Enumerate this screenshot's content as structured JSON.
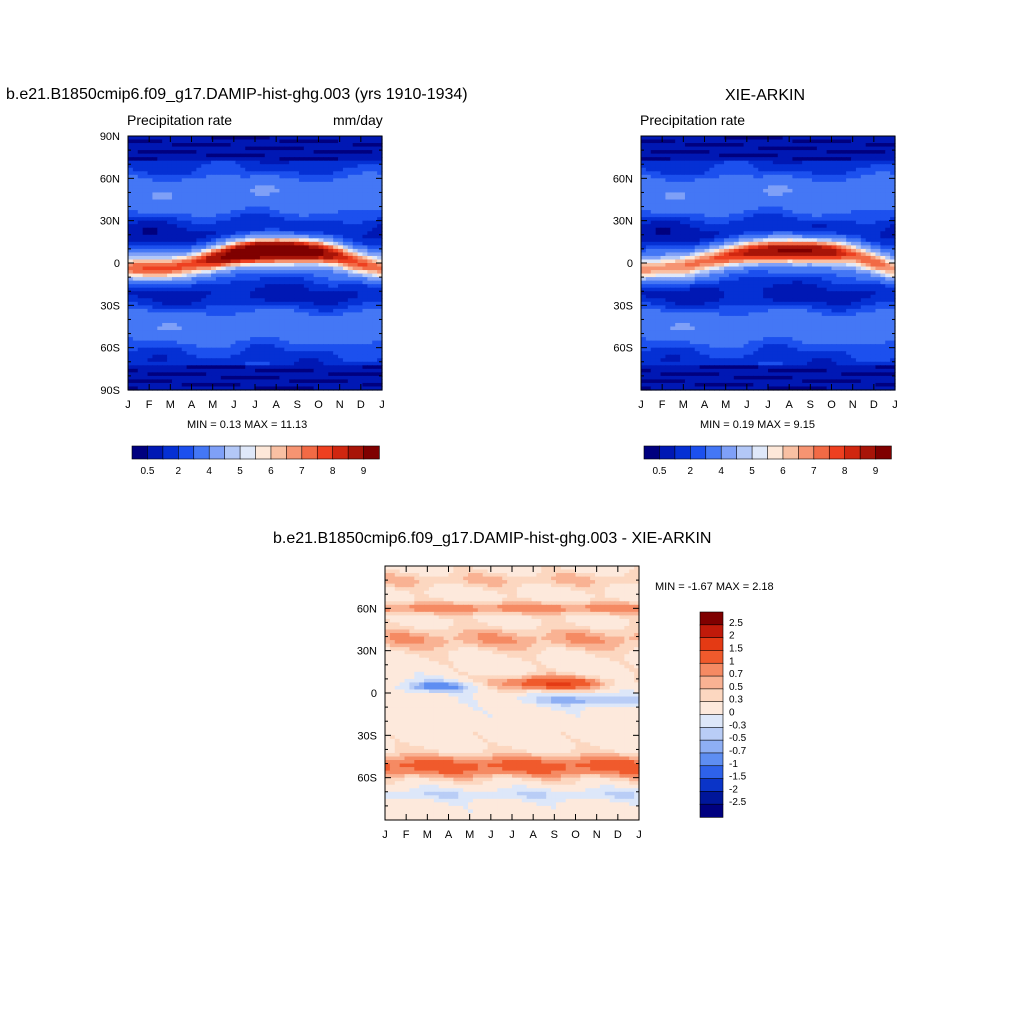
{
  "panels": [
    {
      "id": "model",
      "title": "b.e21.B1850cmip6.f09_g17.DAMIP-hist-ghg.003 (yrs 1910-1934)",
      "left_label": "Precipitation rate",
      "right_label": "mm/day",
      "minmax": "MIN =   0.13 MAX =   11.13"
    },
    {
      "id": "obs",
      "title": "XIE-ARKIN",
      "left_label": "Precipitation rate",
      "right_label": "",
      "minmax": "MIN =   0.19 MAX =   9.15"
    },
    {
      "id": "diff",
      "title": "b.e21.B1850cmip6.f09_g17.DAMIP-hist-ghg.003 - XIE-ARKIN",
      "left_label": "",
      "right_label": "",
      "minmax": "MIN =  -1.67 MAX =   2.18"
    }
  ],
  "x_ticks": [
    "J",
    "F",
    "M",
    "A",
    "M",
    "J",
    "J",
    "A",
    "S",
    "O",
    "N",
    "D",
    "J"
  ],
  "y_ticks_full": [
    "90N",
    "60N",
    "30N",
    "0",
    "30S",
    "60S",
    "90S"
  ],
  "y_ticks_inner": [
    "60N",
    "30N",
    "0",
    "30S",
    "60S"
  ],
  "precip_colorbar": {
    "labels": [
      "0.5",
      "2",
      "4",
      "5",
      "6",
      "7",
      "8",
      "9"
    ],
    "colors": [
      "#00007f",
      "#0018b4",
      "#0530d4",
      "#1c50ee",
      "#4477f5",
      "#7fa0f7",
      "#b3c8f7",
      "#dfe8f9",
      "#fde8d9",
      "#f9c0a3",
      "#f69472",
      "#f26a45",
      "#ee4020",
      "#d02710",
      "#a81408",
      "#7f0000"
    ]
  },
  "diff_colorbar": {
    "labels": [
      "2.5",
      "2",
      "1.5",
      "1",
      "0.7",
      "0.5",
      "0.3",
      "0",
      "-0.3",
      "-0.5",
      "-0.7",
      "-1",
      "-1.5",
      "-2",
      "-2.5"
    ],
    "colors": [
      "#7f0000",
      "#c01a0a",
      "#e43a14",
      "#f05a2c",
      "#f58a63",
      "#f9b293",
      "#fcd7c0",
      "#fde9dc",
      "#dde7f9",
      "#b9cdf6",
      "#8eaff4",
      "#5e8ef2",
      "#2e62ea",
      "#0a34c8",
      "#00169a",
      "#00007f"
    ]
  },
  "chart_data": [
    {
      "type": "heatmap",
      "title": "b.e21.B1850cmip6.f09_g17.DAMIP-hist-ghg.003 (yrs 1910-1934)",
      "variable": "Precipitation rate",
      "units": "mm/day",
      "x": [
        "J",
        "F",
        "M",
        "A",
        "M",
        "J",
        "J",
        "A",
        "S",
        "O",
        "N",
        "D",
        "J"
      ],
      "y": [
        "90N",
        "60N",
        "30N",
        "0",
        "30S",
        "60S",
        "90S"
      ],
      "min": 0.13,
      "max": 11.13,
      "itcz_peak_lat_by_month": [
        -4,
        -4,
        -3,
        0,
        3,
        6,
        8,
        9,
        9,
        8,
        5,
        0,
        -4
      ],
      "itcz_peak_value_by_month": [
        6.5,
        6.8,
        6.6,
        6.8,
        8.5,
        10,
        11,
        11,
        10.5,
        9.5,
        8.2,
        7,
        6.5
      ]
    },
    {
      "type": "heatmap",
      "title": "XIE-ARKIN",
      "variable": "Precipitation rate",
      "x": [
        "J",
        "F",
        "M",
        "A",
        "M",
        "J",
        "J",
        "A",
        "S",
        "O",
        "N",
        "D",
        "J"
      ],
      "y": [
        "60N",
        "30N",
        "0",
        "30S",
        "60S"
      ],
      "min": 0.19,
      "max": 9.15,
      "itcz_peak_lat_by_month": [
        -5,
        -4,
        -2,
        2,
        5,
        7,
        8,
        9,
        9,
        8,
        6,
        1,
        -5
      ],
      "itcz_peak_value_by_month": [
        6,
        6,
        6.2,
        6.6,
        7.4,
        8.2,
        8.8,
        9.1,
        9,
        8.5,
        7.5,
        6.8,
        6
      ]
    },
    {
      "type": "heatmap",
      "title": "b.e21.B1850cmip6.f09_g17.DAMIP-hist-ghg.003 - XIE-ARKIN",
      "x": [
        "J",
        "F",
        "M",
        "A",
        "M",
        "J",
        "J",
        "A",
        "S",
        "O",
        "N",
        "D",
        "J"
      ],
      "y": [
        "60N",
        "30N",
        "0",
        "30S",
        "60S"
      ],
      "min": -1.67,
      "max": 2.18
    }
  ]
}
